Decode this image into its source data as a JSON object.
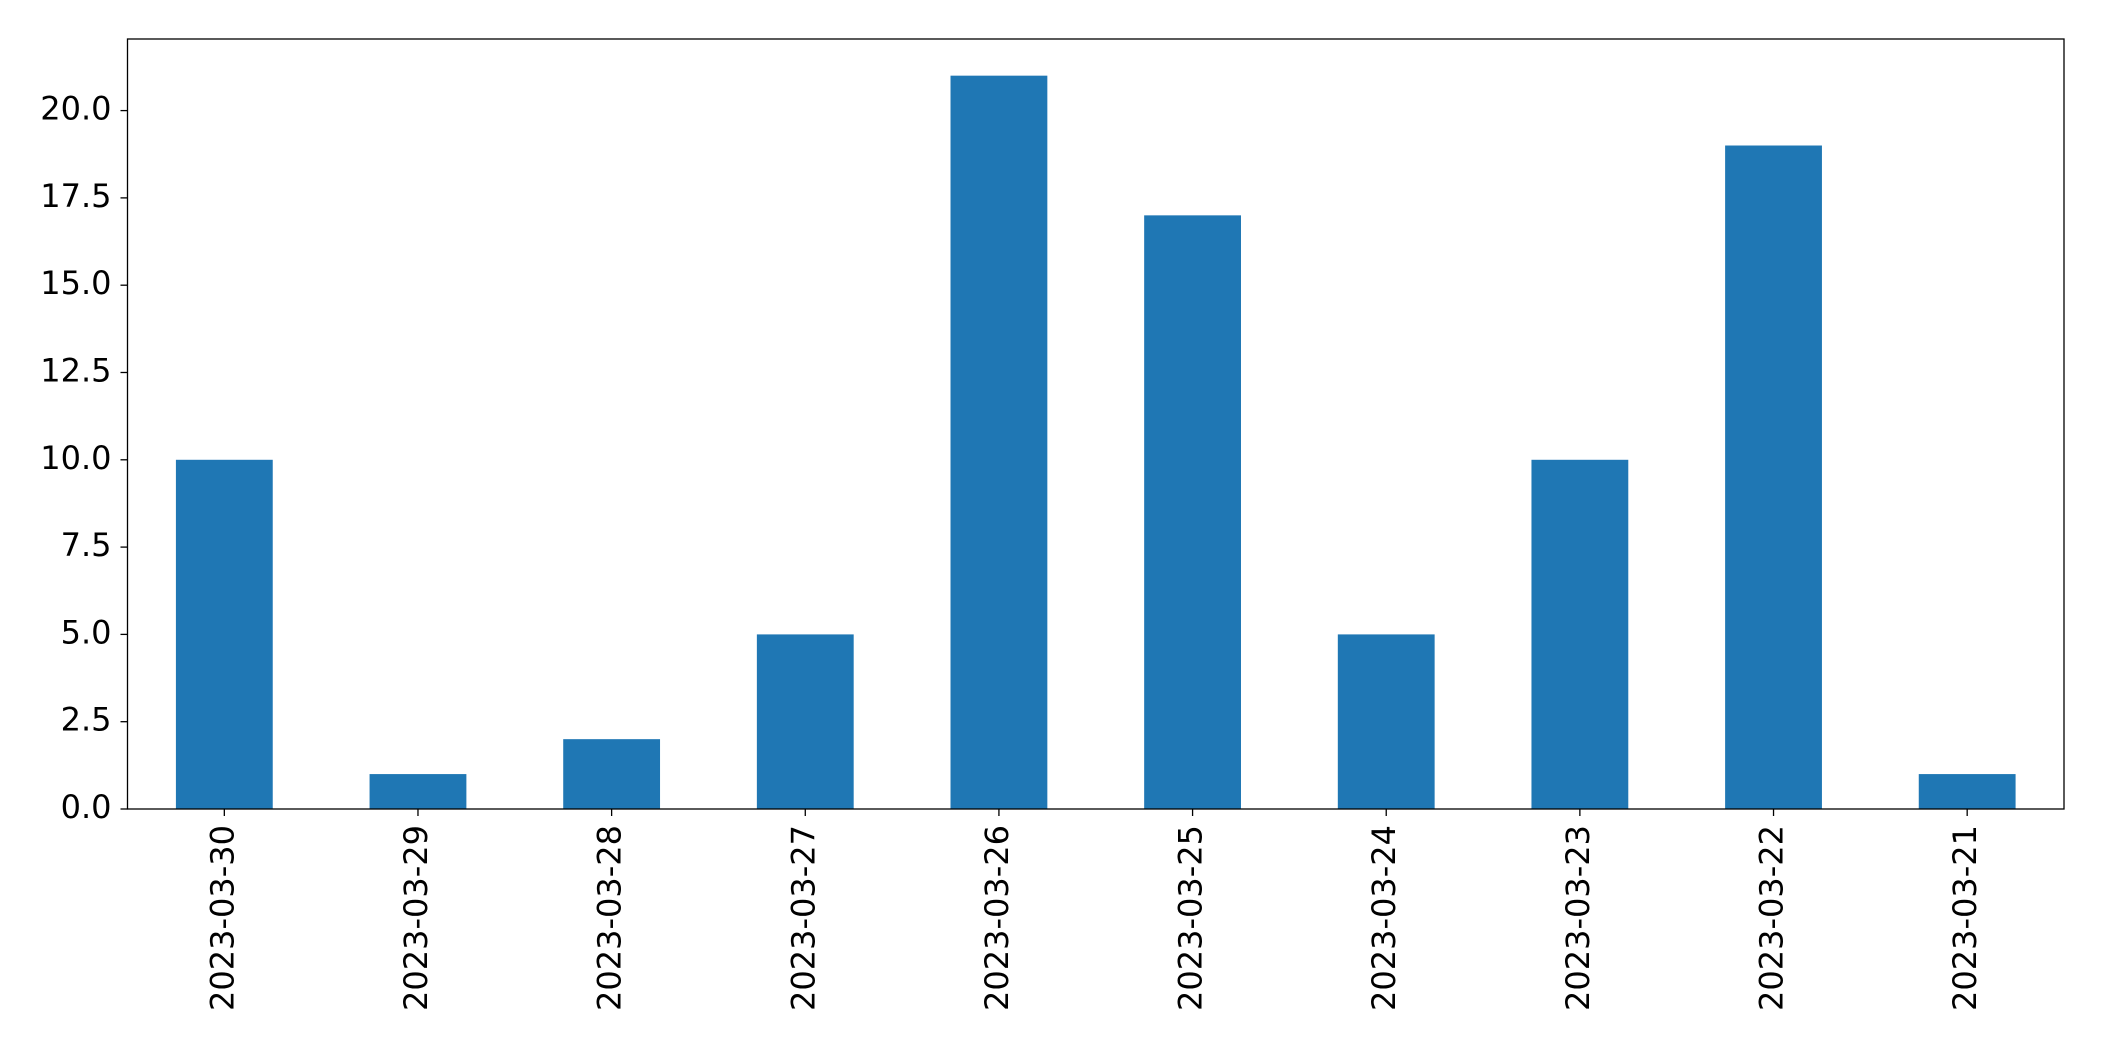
{
  "chart_data": {
    "type": "bar",
    "categories": [
      "2023-03-30",
      "2023-03-29",
      "2023-03-28",
      "2023-03-27",
      "2023-03-26",
      "2023-03-25",
      "2023-03-24",
      "2023-03-23",
      "2023-03-22",
      "2023-03-21"
    ],
    "values": [
      10,
      1,
      2,
      5,
      21,
      17,
      5,
      10,
      19,
      1
    ],
    "color": "#1f77b4",
    "ylim": [
      0,
      22.05
    ],
    "yticks": [
      {
        "value": 0,
        "label": "0.0"
      },
      2.5,
      {
        "value": 5,
        "label": "5.0"
      },
      7.5,
      {
        "value": 10,
        "label": "10.0"
      },
      12.5,
      {
        "value": 15,
        "label": "15.0"
      },
      17.5,
      {
        "value": 20,
        "label": "20.0"
      }
    ],
    "grid": false
  }
}
